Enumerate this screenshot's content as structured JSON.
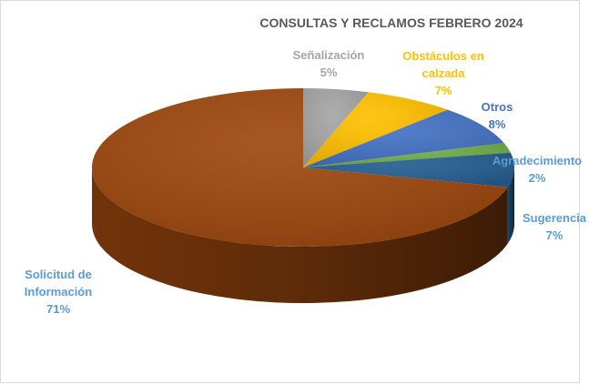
{
  "chart_data": {
    "type": "pie3d",
    "title": "CONSULTAS Y RECLAMOS FEBRERO 2024",
    "categories": [
      "Señalización",
      "Obstáculos en calzada",
      "Otros",
      "Agradecimiento",
      "Sugerencia",
      "Solicitud de Información"
    ],
    "values": [
      5,
      7,
      8,
      2,
      7,
      71
    ],
    "value_labels": [
      "5%",
      "7%",
      "8%",
      "2%",
      "7%",
      "71%"
    ],
    "colors": [
      "#a5a5a5",
      "#ffc000",
      "#4472c4",
      "#70ad47",
      "#255e91",
      "#9e480e"
    ],
    "label_colors": [
      "#a5a5a5",
      "#ffc000",
      "#4472c4",
      "#5b9bd5",
      "#5b9bd5",
      "#5b9bd5"
    ]
  }
}
